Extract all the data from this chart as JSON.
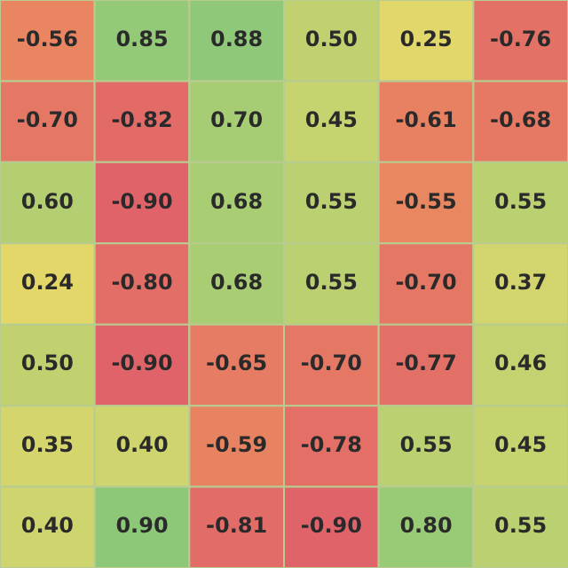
{
  "chart_data": {
    "type": "heatmap",
    "categories": [
      null,
      null,
      null,
      null,
      null,
      null
    ],
    "y_categories": [
      null,
      null,
      null,
      null,
      null,
      null,
      null
    ],
    "cells": [
      [
        -0.56,
        0.85,
        0.88,
        0.5,
        0.25,
        -0.76
      ],
      [
        -0.7,
        -0.82,
        0.7,
        0.45,
        -0.61,
        -0.68
      ],
      [
        0.6,
        -0.9,
        0.68,
        0.55,
        -0.55,
        0.55
      ],
      [
        0.24,
        -0.8,
        0.68,
        0.55,
        -0.7,
        0.37
      ],
      [
        0.5,
        -0.9,
        -0.65,
        -0.7,
        -0.77,
        0.46
      ],
      [
        0.35,
        0.4,
        -0.59,
        -0.78,
        0.55,
        0.45
      ],
      [
        0.4,
        0.9,
        -0.81,
        -0.9,
        0.8,
        0.55
      ]
    ],
    "cell_labels": [
      [
        "-0.56",
        "0.85",
        "0.88",
        "0.50",
        "0.25",
        "-0.76"
      ],
      [
        "-0.70",
        "-0.82",
        "0.70",
        "0.45",
        "-0.61",
        "-0.68"
      ],
      [
        "0.60",
        "-0.90",
        "0.68",
        "0.55",
        "-0.55",
        "0.55"
      ],
      [
        "0.24",
        "-0.80",
        "0.68",
        "0.55",
        "-0.70",
        "0.37"
      ],
      [
        "0.50",
        "-0.90",
        "-0.65",
        "-0.70",
        "-0.77",
        "0.46"
      ],
      [
        "0.35",
        "0.40",
        "-0.59",
        "-0.78",
        "0.55",
        "0.45"
      ],
      [
        "0.40",
        "0.90",
        "-0.81",
        "-0.90",
        "0.80",
        "0.55"
      ]
    ]
  }
}
